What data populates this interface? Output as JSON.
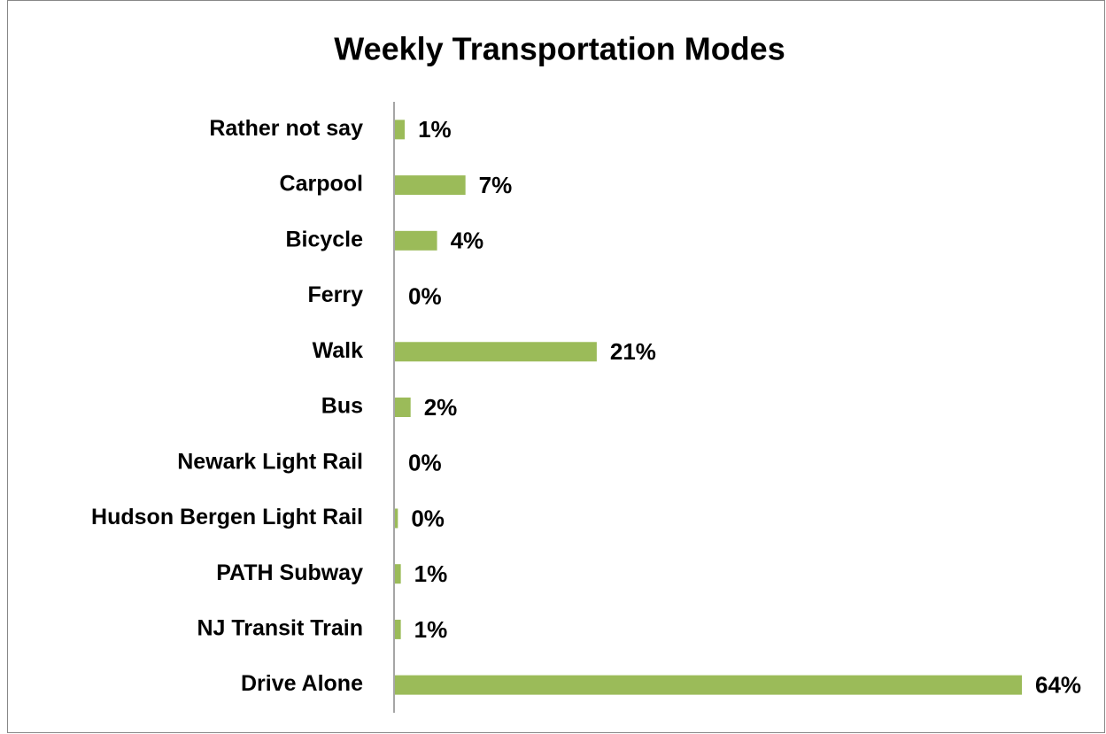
{
  "chart_data": {
    "type": "hbar",
    "title": "Weekly Transportation Modes",
    "categories": [
      "Rather not say",
      "Carpool",
      "Bicycle",
      "Ferry",
      "Walk",
      "Bus",
      "Newark Light Rail",
      "Hudson Bergen Light Rail",
      "PATH Subway",
      "NJ Transit Train",
      "Drive Alone"
    ],
    "values": [
      1,
      7.2,
      4.3,
      0,
      20.6,
      1.6,
      0,
      0.3,
      0.6,
      0.6,
      64
    ],
    "value_labels": [
      "1%",
      "7%",
      "4%",
      "0%",
      "21%",
      "2%",
      "0%",
      "0%",
      "1%",
      "1%",
      "64%"
    ],
    "color": "#9bbb59"
  }
}
